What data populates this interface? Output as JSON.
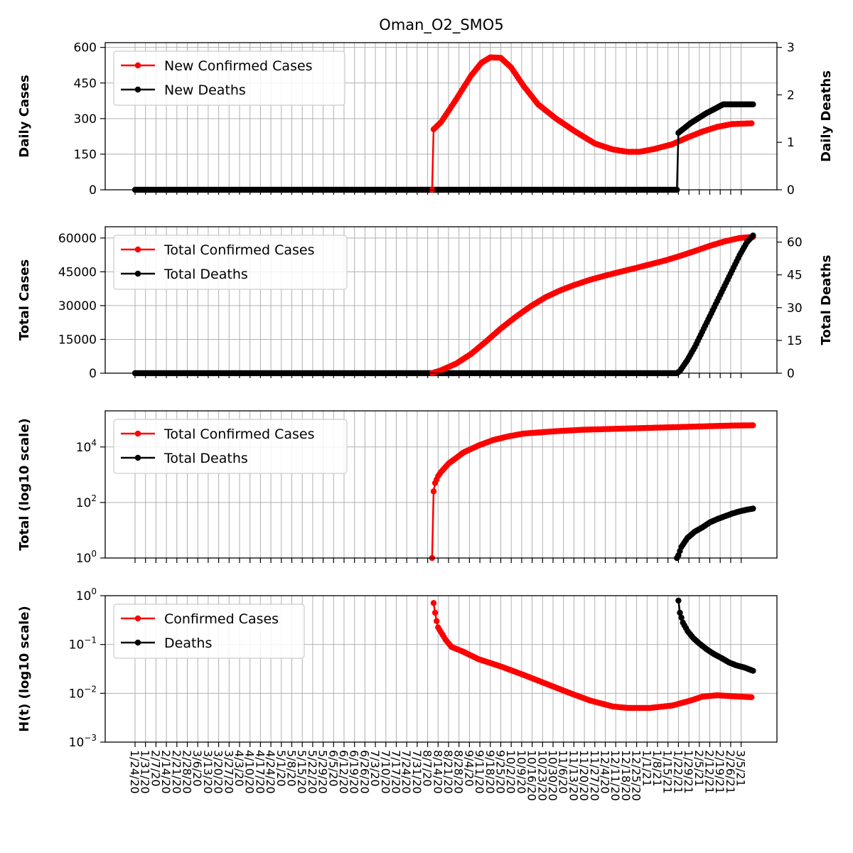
{
  "chart_data": {
    "title": "Oman_O2_SMO5",
    "x_tick_labels": [
      "1/24/20",
      "1/31/20",
      "2/7/20",
      "2/14/20",
      "2/21/20",
      "2/28/20",
      "3/6/20",
      "3/13/20",
      "3/20/20",
      "3/27/20",
      "4/3/20",
      "4/10/20",
      "4/17/20",
      "4/24/20",
      "5/1/20",
      "5/8/20",
      "5/15/20",
      "5/22/20",
      "5/29/20",
      "6/5/20",
      "6/12/20",
      "6/19/20",
      "6/26/20",
      "7/3/20",
      "7/10/20",
      "7/17/20",
      "7/24/20",
      "7/31/20",
      "8/7/20",
      "8/14/20",
      "8/21/20",
      "8/28/20",
      "9/4/20",
      "9/11/20",
      "9/18/20",
      "9/25/20",
      "10/2/20",
      "10/9/20",
      "10/16/20",
      "10/23/20",
      "10/30/20",
      "11/6/20",
      "11/13/20",
      "11/20/20",
      "11/27/20",
      "12/4/20",
      "12/11/20",
      "12/18/20",
      "12/25/20",
      "1/1/21",
      "1/8/21",
      "1/15/21",
      "1/22/21",
      "1/29/21",
      "2/5/21",
      "2/12/21",
      "2/19/21",
      "2/26/21",
      "3/5/21"
    ],
    "panels": [
      {
        "type": "line",
        "ylabel": "Daily Cases",
        "y2label": "Daily Deaths",
        "ylim": [
          0,
          620
        ],
        "y2lim": [
          0,
          3.1
        ],
        "yticks": [
          "0",
          "150",
          "300",
          "450",
          "600"
        ],
        "y2ticks": [
          "0",
          "1",
          "2",
          "3"
        ],
        "legend": [
          "New Confirmed Cases",
          "New Deaths"
        ],
        "series_cases": {
          "name": "New Confirmed Cases",
          "color": "#ff0000",
          "start_day": 200,
          "end_day": 413,
          "points": [
            [
              199,
              0
            ],
            [
              200,
              255
            ],
            [
              205,
              285
            ],
            [
              215,
              380
            ],
            [
              225,
              480
            ],
            [
              232,
              535
            ],
            [
              238,
              558
            ],
            [
              245,
              556
            ],
            [
              252,
              515
            ],
            [
              260,
              440
            ],
            [
              270,
              360
            ],
            [
              282,
              300
            ],
            [
              295,
              245
            ],
            [
              308,
              195
            ],
            [
              320,
              170
            ],
            [
              330,
              160
            ],
            [
              338,
              160
            ],
            [
              348,
              172
            ],
            [
              360,
              192
            ],
            [
              370,
              220
            ],
            [
              380,
              245
            ],
            [
              390,
              265
            ],
            [
              400,
              277
            ],
            [
              413,
              280
            ]
          ]
        },
        "series_deaths": {
          "name": "New Deaths",
          "color": "#000000",
          "start_day": 364,
          "end_day": 414,
          "points": [
            [
              363,
              0
            ],
            [
              364,
              1.2
            ],
            [
              368,
              1.3
            ],
            [
              372,
              1.4
            ],
            [
              377,
              1.5
            ],
            [
              382,
              1.6
            ],
            [
              388,
              1.7
            ],
            [
              394,
              1.8
            ],
            [
              414,
              1.8
            ]
          ]
        }
      },
      {
        "type": "line",
        "ylabel": "Total Cases",
        "y2label": "Total Deaths",
        "ylim": [
          0,
          65000
        ],
        "y2lim": [
          0,
          67
        ],
        "yticks": [
          "0",
          "15000",
          "30000",
          "45000",
          "60000"
        ],
        "y2ticks": [
          "0",
          "15",
          "30",
          "45",
          "60"
        ],
        "legend": [
          "Total Confirmed Cases",
          "Total Deaths"
        ],
        "series_cases": {
          "name": "Total Confirmed Cases",
          "color": "#ff0000",
          "points": [
            [
              199,
              0
            ],
            [
              205,
              1300
            ],
            [
              215,
              4200
            ],
            [
              225,
              8500
            ],
            [
              235,
              14000
            ],
            [
              245,
              19800
            ],
            [
              255,
              25000
            ],
            [
              265,
              29700
            ],
            [
              275,
              33700
            ],
            [
              285,
              36800
            ],
            [
              295,
              39300
            ],
            [
              305,
              41500
            ],
            [
              315,
              43300
            ],
            [
              325,
              45000
            ],
            [
              335,
              46600
            ],
            [
              345,
              48300
            ],
            [
              355,
              50000
            ],
            [
              365,
              52000
            ],
            [
              375,
              54200
            ],
            [
              385,
              56500
            ],
            [
              395,
              58500
            ],
            [
              405,
              60000
            ],
            [
              414,
              60500
            ]
          ]
        },
        "series_deaths": {
          "name": "Total Deaths",
          "color": "#000000",
          "points": [
            [
              363,
              0
            ],
            [
              365,
              1
            ],
            [
              370,
              6
            ],
            [
              375,
              12
            ],
            [
              380,
              19
            ],
            [
              385,
              26
            ],
            [
              390,
              33
            ],
            [
              395,
              40
            ],
            [
              400,
              47
            ],
            [
              405,
              54
            ],
            [
              410,
              60
            ],
            [
              414,
              63
            ]
          ]
        }
      },
      {
        "type": "line",
        "ylabel": "Total (log10 scale)",
        "log": true,
        "ylim_log": [
          0,
          5.3
        ],
        "yticks": [
          "10^0",
          "10^2",
          "10^4"
        ],
        "legend": [
          "Total Confirmed Cases",
          "Total Deaths"
        ],
        "series_cases": {
          "name": "Total Confirmed Cases",
          "color": "#ff0000",
          "points_log": [
            [
              199,
              0
            ],
            [
              200,
              2.4
            ],
            [
              201,
              2.7
            ],
            [
              203,
              2.95
            ],
            [
              205,
              3.1
            ],
            [
              210,
              3.4
            ],
            [
              220,
              3.8
            ],
            [
              230,
              4.05
            ],
            [
              240,
              4.25
            ],
            [
              250,
              4.38
            ],
            [
              260,
              4.48
            ],
            [
              280,
              4.56
            ],
            [
              300,
              4.62
            ],
            [
              320,
              4.65
            ],
            [
              340,
              4.68
            ],
            [
              360,
              4.71
            ],
            [
              380,
              4.74
            ],
            [
              400,
              4.77
            ],
            [
              414,
              4.78
            ]
          ]
        },
        "series_deaths": {
          "name": "Total Deaths",
          "color": "#000000",
          "points_log": [
            [
              363,
              0
            ],
            [
              364,
              0.1
            ],
            [
              366,
              0.4
            ],
            [
              370,
              0.72
            ],
            [
              375,
              0.95
            ],
            [
              380,
              1.1
            ],
            [
              385,
              1.28
            ],
            [
              390,
              1.4
            ],
            [
              395,
              1.5
            ],
            [
              400,
              1.6
            ],
            [
              405,
              1.68
            ],
            [
              410,
              1.74
            ],
            [
              414,
              1.78
            ]
          ]
        }
      },
      {
        "type": "line",
        "ylabel": "H(t) (log10 scale)",
        "log": true,
        "ylim_log": [
          -3,
          0
        ],
        "yticks": [
          "10^0",
          "10^-1",
          "10^-2",
          "10^-3"
        ],
        "legend": [
          "Confirmed Cases",
          "Deaths"
        ],
        "series_cases": {
          "name": "Confirmed Cases",
          "color": "#ff0000",
          "points_log": [
            [
              200,
              -0.15
            ],
            [
              201,
              -0.35
            ],
            [
              202,
              -0.52
            ],
            [
              203,
              -0.65
            ],
            [
              205,
              -0.75
            ],
            [
              208,
              -0.9
            ],
            [
              212,
              -1.05
            ],
            [
              220,
              -1.15
            ],
            [
              230,
              -1.3
            ],
            [
              245,
              -1.45
            ],
            [
              260,
              -1.62
            ],
            [
              275,
              -1.8
            ],
            [
              290,
              -1.98
            ],
            [
              305,
              -2.15
            ],
            [
              320,
              -2.27
            ],
            [
              330,
              -2.3
            ],
            [
              345,
              -2.3
            ],
            [
              360,
              -2.25
            ],
            [
              372,
              -2.15
            ],
            [
              380,
              -2.07
            ],
            [
              390,
              -2.04
            ],
            [
              400,
              -2.06
            ],
            [
              413,
              -2.08
            ]
          ]
        },
        "series_deaths": {
          "name": "Deaths",
          "color": "#000000",
          "points_log": [
            [
              364,
              -0.1
            ],
            [
              365,
              -0.35
            ],
            [
              367,
              -0.55
            ],
            [
              370,
              -0.72
            ],
            [
              374,
              -0.87
            ],
            [
              378,
              -0.98
            ],
            [
              383,
              -1.1
            ],
            [
              388,
              -1.2
            ],
            [
              393,
              -1.28
            ],
            [
              398,
              -1.37
            ],
            [
              403,
              -1.43
            ],
            [
              408,
              -1.47
            ],
            [
              414,
              -1.54
            ]
          ]
        }
      }
    ]
  }
}
